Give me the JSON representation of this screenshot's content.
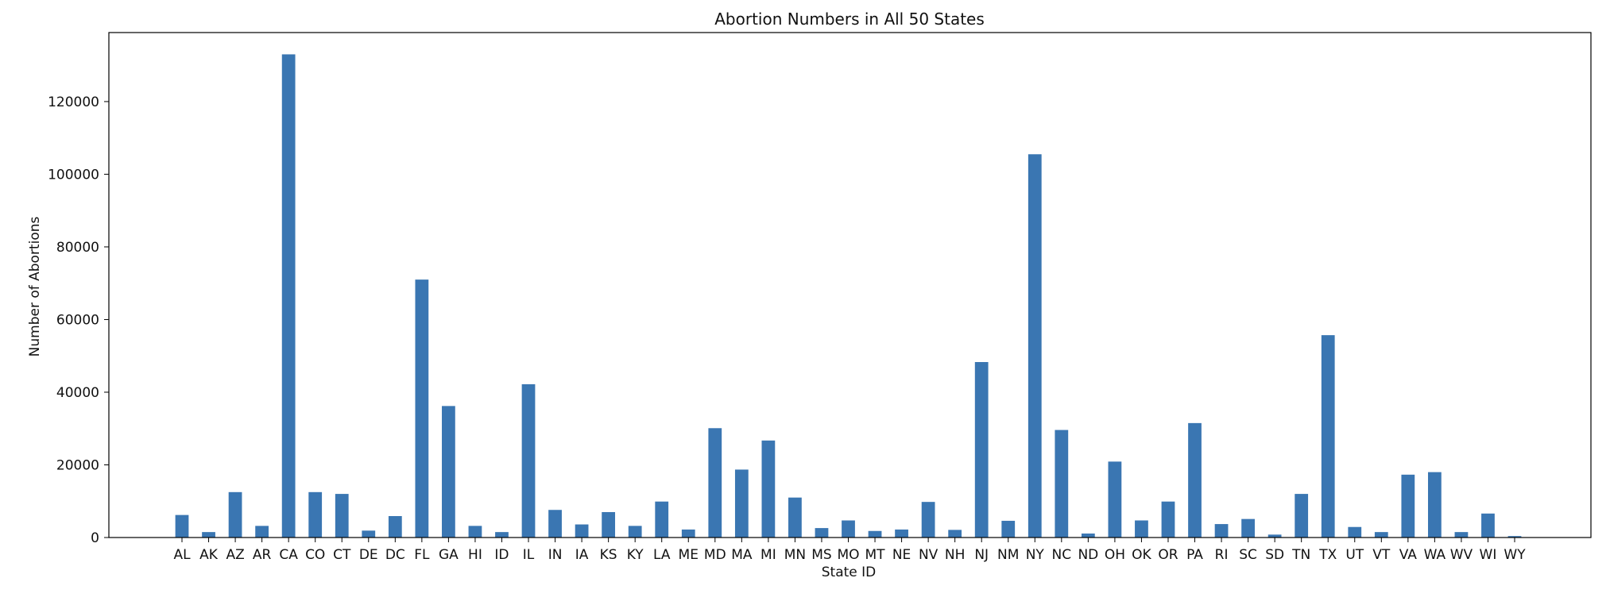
{
  "chart_data": {
    "type": "bar",
    "title": "Abortion Numbers in All 50 States",
    "xlabel": "State ID",
    "ylabel": "Number of Abortions",
    "categories": [
      "AL",
      "AK",
      "AZ",
      "AR",
      "CA",
      "CO",
      "CT",
      "DE",
      "DC",
      "FL",
      "GA",
      "HI",
      "ID",
      "IL",
      "IN",
      "IA",
      "KS",
      "KY",
      "LA",
      "ME",
      "MD",
      "MA",
      "MI",
      "MN",
      "MS",
      "MO",
      "MT",
      "NE",
      "NV",
      "NH",
      "NJ",
      "NM",
      "NY",
      "NC",
      "ND",
      "OH",
      "OK",
      "OR",
      "PA",
      "RI",
      "SC",
      "SD",
      "TN",
      "TX",
      "UT",
      "VT",
      "VA",
      "WA",
      "WV",
      "WI",
      "WY"
    ],
    "values": [
      6200,
      1500,
      12500,
      3200,
      133000,
      12500,
      12000,
      1900,
      5900,
      71000,
      36200,
      3200,
      1500,
      42200,
      7600,
      3600,
      7000,
      3200,
      9900,
      2200,
      30100,
      18700,
      26700,
      11000,
      2600,
      4700,
      1800,
      2200,
      9800,
      2100,
      48300,
      4600,
      105500,
      29600,
      1100,
      20900,
      4700,
      9900,
      31500,
      3700,
      5100,
      800,
      12000,
      55700,
      2900,
      1500,
      17300,
      18000,
      1500,
      6600,
      400
    ],
    "ylim": [
      0,
      139000
    ],
    "yticks": [
      0,
      20000,
      40000,
      60000,
      80000,
      100000,
      120000
    ],
    "grid": false,
    "legend": false,
    "colors": {
      "bar": "#3a76b2",
      "axes": "#000000",
      "text": "#111111"
    }
  }
}
